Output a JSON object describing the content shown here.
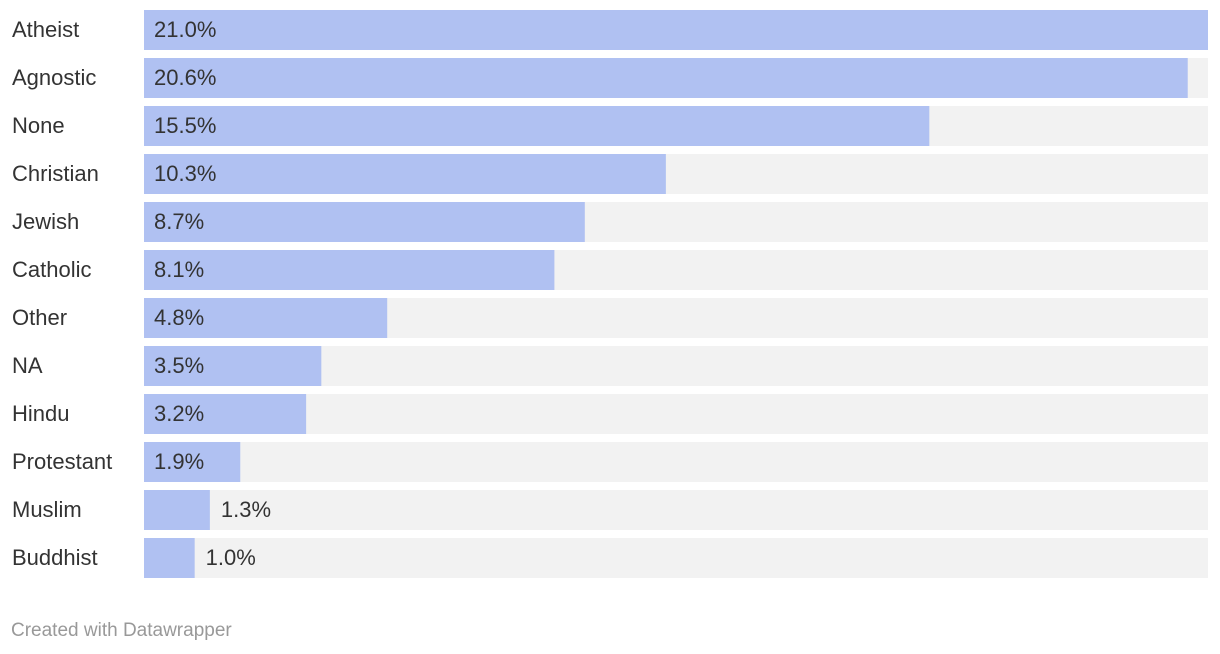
{
  "chart_data": {
    "type": "bar",
    "orientation": "horizontal",
    "categories": [
      "Atheist",
      "Agnostic",
      "None",
      "Christian",
      "Jewish",
      "Catholic",
      "Other",
      "NA",
      "Hindu",
      "Protestant",
      "Muslim",
      "Buddhist"
    ],
    "values": [
      21.0,
      20.6,
      15.5,
      10.3,
      8.7,
      8.1,
      4.8,
      3.5,
      3.2,
      1.9,
      1.3,
      1.0
    ],
    "value_labels": [
      "21.0%",
      "20.6%",
      "15.5%",
      "10.3%",
      "8.7%",
      "8.1%",
      "4.8%",
      "3.5%",
      "3.2%",
      "1.9%",
      "1.3%",
      "1.0%"
    ],
    "color": "#b0c1f2",
    "background_color": "#f2f2f2",
    "footer": "Created with Datawrapper"
  }
}
